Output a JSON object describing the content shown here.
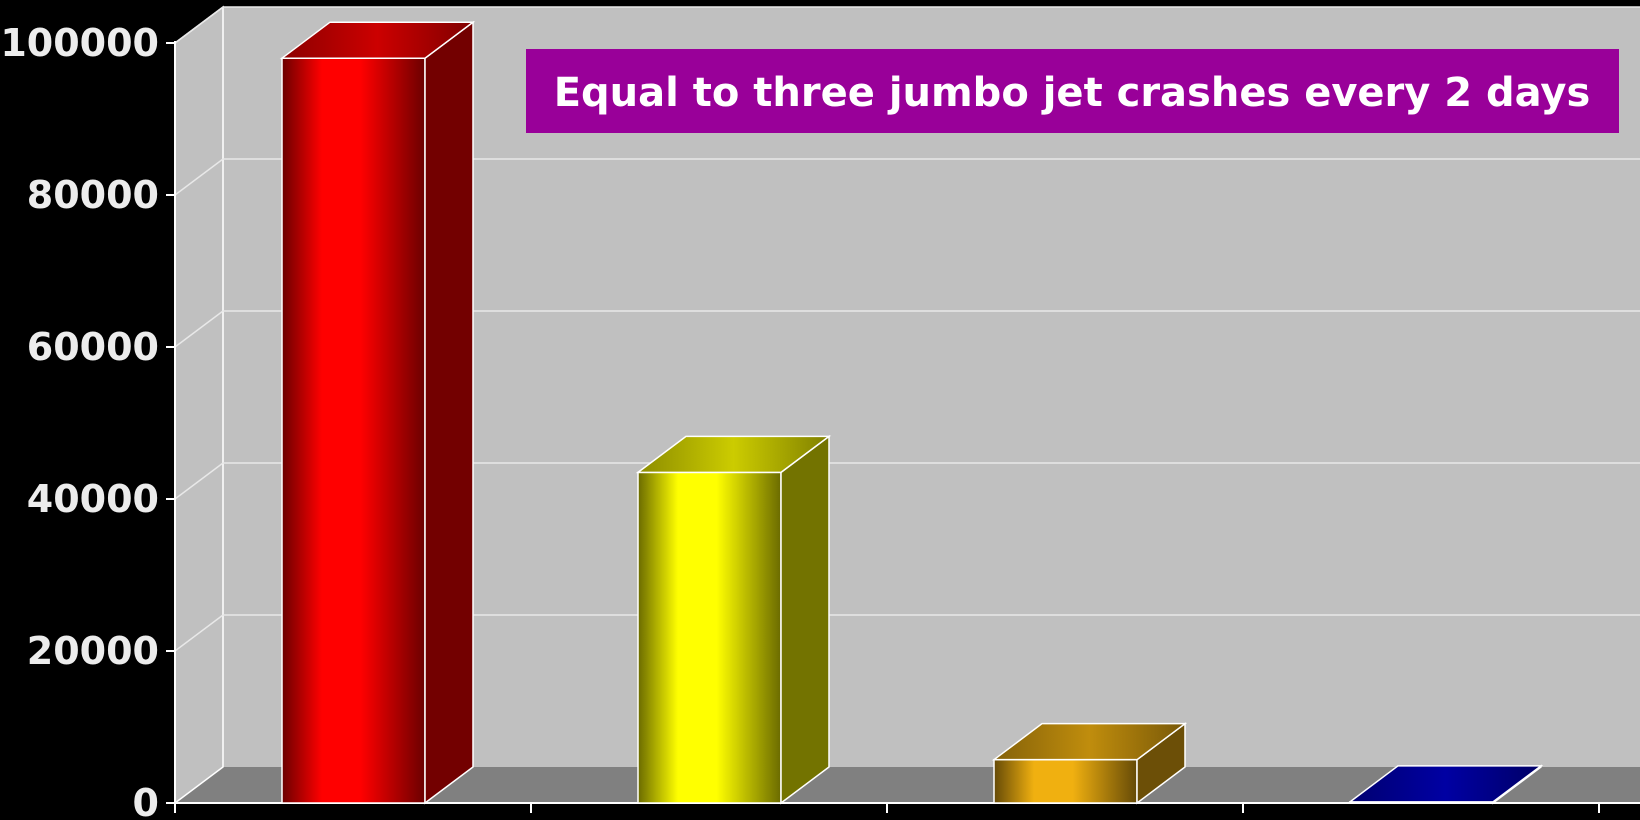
{
  "chart_data": {
    "type": "bar",
    "categories": [
      "",
      "",
      "",
      ""
    ],
    "values": [
      98000,
      43500,
      5700,
      150
    ],
    "ylim": [
      0,
      100000
    ],
    "yticks": [
      0,
      20000,
      40000,
      60000,
      80000,
      100000
    ],
    "ytick_labels": [
      "0",
      "20000",
      "40000",
      "60000",
      "80000",
      "100000"
    ],
    "grid": true,
    "three_d": true,
    "annotation": "Equal to three jumbo jet crashes every 2 days",
    "colors": {
      "background": "#000000",
      "wall": "#c0c0c0",
      "floor": "#808080",
      "grid": "#e8e8e8",
      "annotation_box": "#990099",
      "bars": [
        "#ff0000",
        "#ffff00",
        "#f0b010",
        "#0000cc"
      ]
    }
  }
}
